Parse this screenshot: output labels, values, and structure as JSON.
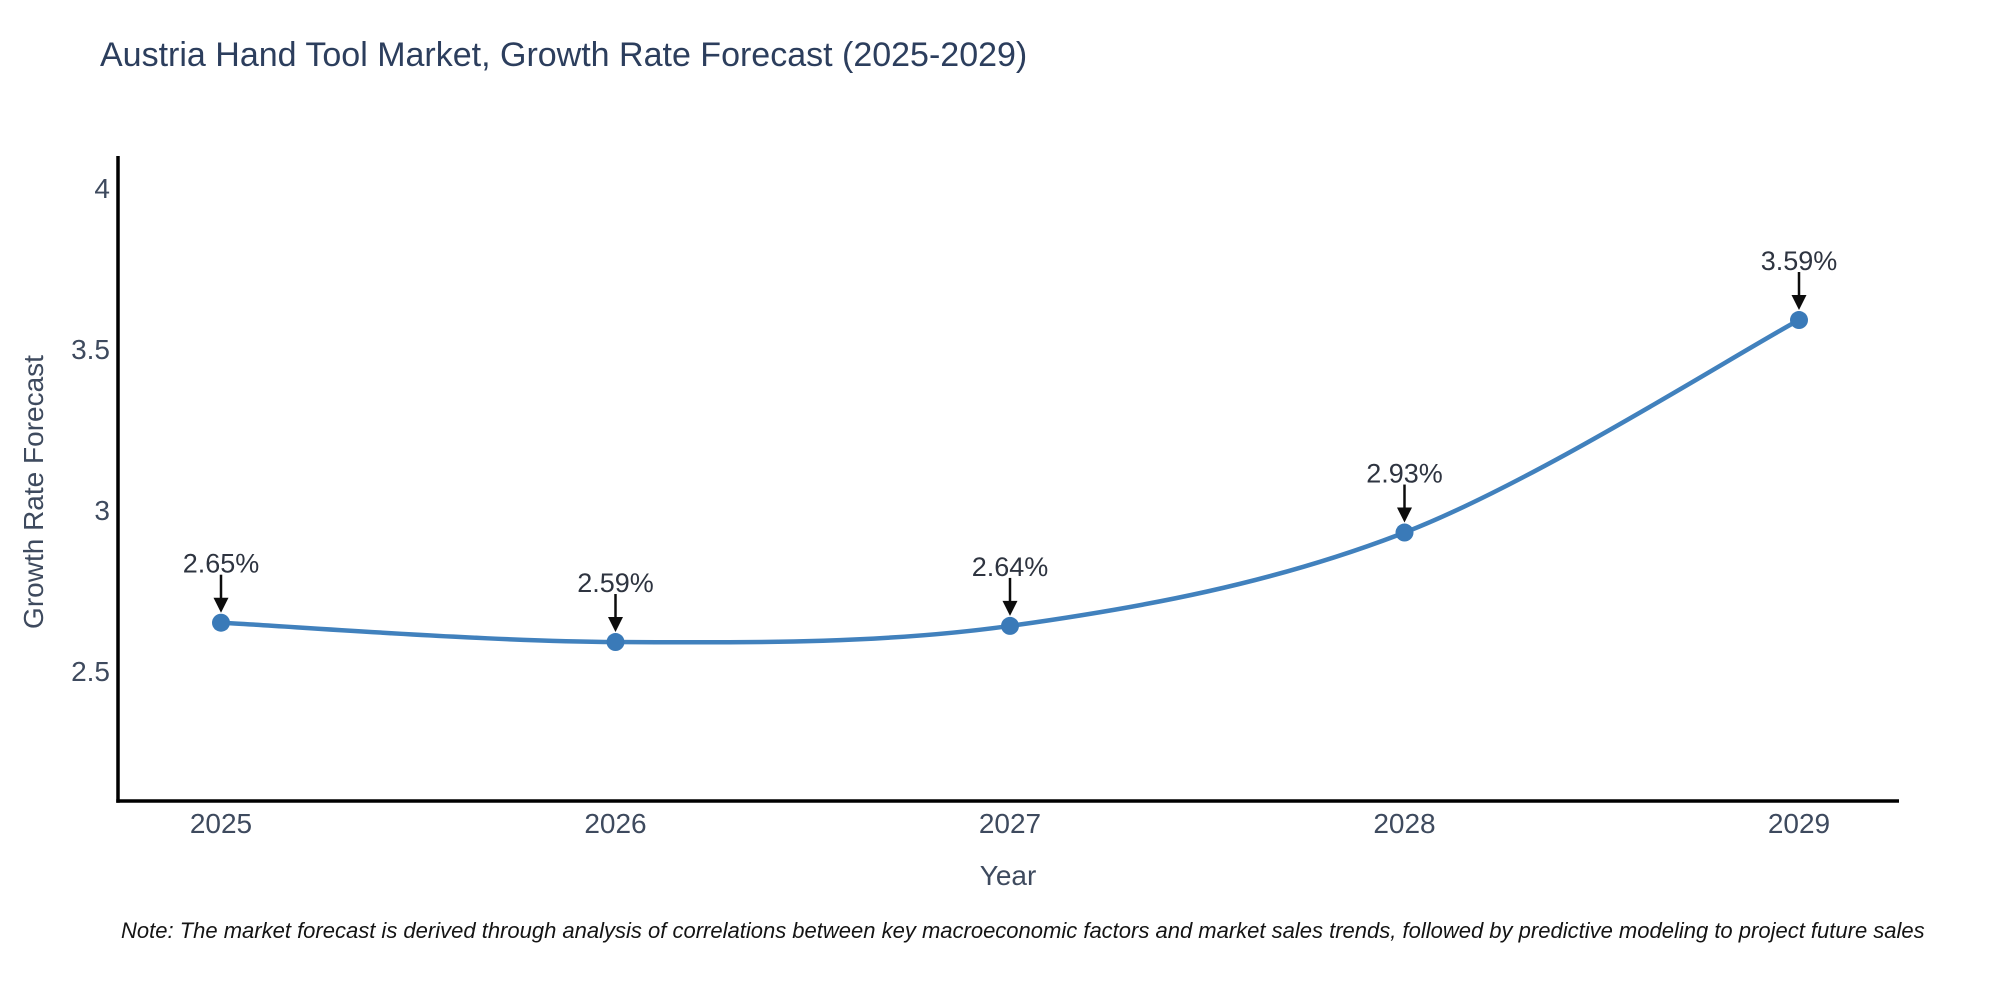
{
  "note": "Note: The market forecast is derived through analysis of correlations between key macroeconomic factors and market sales trends, followed by predictive modeling to project future sales",
  "chart_data": {
    "type": "line",
    "title": "Austria Hand Tool Market, Growth Rate Forecast (2025-2029)",
    "xlabel": "Year",
    "ylabel": "Growth Rate Forecast",
    "categories": [
      "2025",
      "2026",
      "2027",
      "2028",
      "2029"
    ],
    "x": [
      2025,
      2026,
      2027,
      2028,
      2029
    ],
    "values": [
      2.65,
      2.59,
      2.64,
      2.93,
      3.59
    ],
    "point_labels": [
      "2.65%",
      "2.59%",
      "2.64%",
      "2.93%",
      "3.59%"
    ],
    "yticks": [
      2.5,
      3,
      3.5,
      4
    ],
    "ytick_labels": [
      "2.5",
      "3",
      "3.5",
      "4"
    ],
    "ylim": [
      2.1,
      4.1
    ],
    "grid": false,
    "legend": "none",
    "line_shape": "spline",
    "annotations_have_arrows": true
  },
  "colors": {
    "line": "#4181bd",
    "marker": "#3a7ab8",
    "arrow": "#0d0d0d",
    "annotation_text": "#2e3440",
    "axis_text": "#3e4a5e",
    "title_text": "#2c3e5d",
    "spine": "#000000",
    "background": "#ffffff"
  }
}
